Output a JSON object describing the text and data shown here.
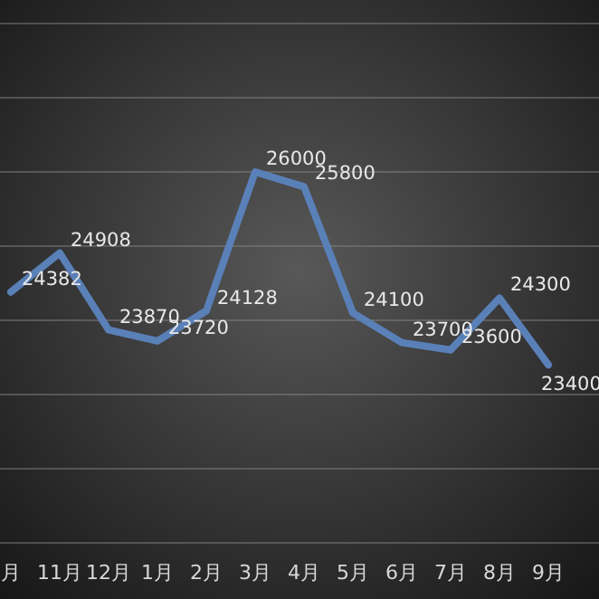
{
  "chart_data": {
    "type": "line",
    "categories": [
      "月",
      "11月",
      "12月",
      "1月",
      "2月",
      "3月",
      "4月",
      "5月",
      "6月",
      "7月",
      "8月",
      "9月"
    ],
    "series": [
      {
        "color": "#5a80b8",
        "values": [
          24382,
          24908,
          23870,
          23720,
          24128,
          26000,
          25800,
          24100,
          23700,
          23600,
          24300,
          23400
        ]
      }
    ],
    "data_labels": true,
    "ylim": [
      21000,
      28000
    ],
    "yticks": [
      {
        "value": 21000,
        "label": null
      },
      {
        "value": 22000,
        "label": null
      },
      {
        "value": 23000,
        "label": null
      },
      {
        "value": 24000,
        "label": null
      },
      {
        "value": 25000,
        "label": null
      },
      {
        "value": 26000,
        "label": null
      },
      {
        "value": 27000,
        "label": null
      },
      {
        "value": 28000,
        "label": null
      }
    ],
    "tick_labels": "x",
    "grid": "y",
    "marker": "none",
    "line_style": "solid"
  }
}
